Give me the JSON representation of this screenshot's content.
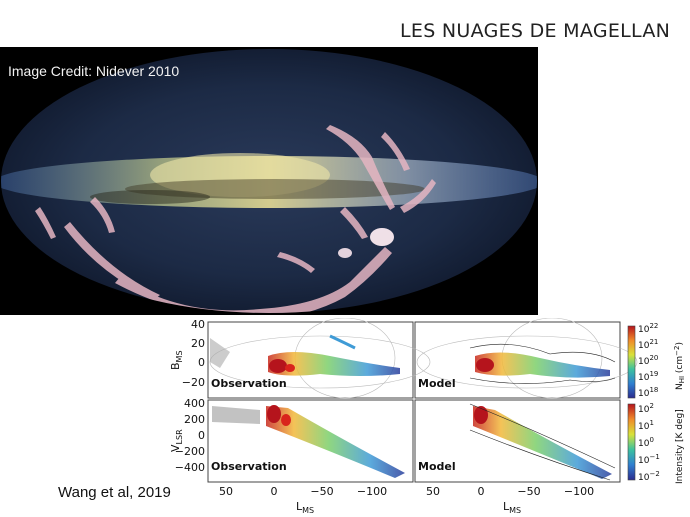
{
  "slide": {
    "title": "LES NUAGES DE MAGELLAN",
    "citation": "Wang et al, 2019"
  },
  "sky_image": {
    "credit": "Image Credit:  Nidever 2010",
    "colors": {
      "background": "#000000",
      "milky_way": "#d8d08a",
      "stream": "#e8b8c4"
    }
  },
  "figure": {
    "panels": [
      {
        "id": "top-left",
        "label": "Observation"
      },
      {
        "id": "top-right",
        "label": "Model"
      },
      {
        "id": "bottom-left",
        "label": "Observation"
      },
      {
        "id": "bottom-right",
        "label": "Model"
      }
    ],
    "top_y_axis": {
      "label": "B",
      "sub": "MS",
      "ticks": [
        "40",
        "20",
        "0",
        "−20"
      ]
    },
    "bottom_y_axis": {
      "label": "V",
      "sub": "LSR",
      "ticks": [
        "400",
        "200",
        "0",
        "−200",
        "−400"
      ]
    },
    "x_axis": {
      "label": "L",
      "sub": "MS",
      "ticks": [
        "50",
        "0",
        "−50",
        "−100"
      ]
    },
    "colorbar_top": {
      "label": "N",
      "label_sub": "HI",
      "label_unit": " (cm",
      "label_unit_sup": "−2",
      "label_end": ")",
      "ticks": [
        {
          "base": "10",
          "exp": "22"
        },
        {
          "base": "10",
          "exp": "21"
        },
        {
          "base": "10",
          "exp": "20"
        },
        {
          "base": "10",
          "exp": "19"
        },
        {
          "base": "10",
          "exp": "18"
        }
      ]
    },
    "colorbar_bottom": {
      "label": "Intensity [K deg]",
      "ticks": [
        {
          "base": "10",
          "exp": "2"
        },
        {
          "base": "10",
          "exp": "1"
        },
        {
          "base": "10",
          "exp": "0"
        },
        {
          "base": "10",
          "exp": "−1"
        },
        {
          "base": "10",
          "exp": "−2"
        }
      ]
    }
  }
}
